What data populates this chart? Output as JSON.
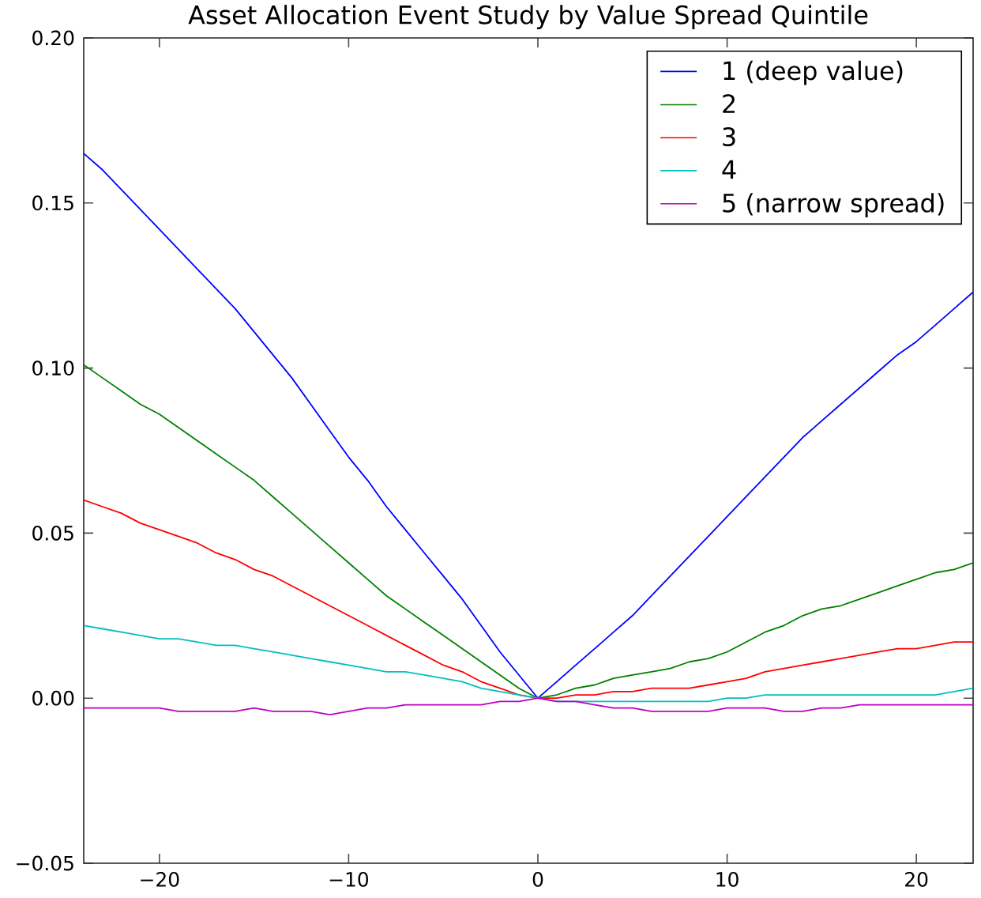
{
  "chart_data": {
    "type": "line",
    "title": "Asset Allocation Event Study by Value Spread Quintile",
    "x": [
      -24,
      -23,
      -22,
      -21,
      -20,
      -19,
      -18,
      -17,
      -16,
      -15,
      -14,
      -13,
      -12,
      -11,
      -10,
      -9,
      -8,
      -7,
      -6,
      -5,
      -4,
      -3,
      -2,
      -1,
      0,
      1,
      2,
      3,
      4,
      5,
      6,
      7,
      8,
      9,
      10,
      11,
      12,
      13,
      14,
      15,
      16,
      17,
      18,
      19,
      20,
      21,
      22,
      23
    ],
    "series": [
      {
        "name": "1 (deep value)",
        "color": "#0000ff",
        "values": [
          0.165,
          0.16,
          0.154,
          0.148,
          0.142,
          0.136,
          0.13,
          0.124,
          0.118,
          0.111,
          0.104,
          0.097,
          0.089,
          0.081,
          0.073,
          0.066,
          0.058,
          0.051,
          0.044,
          0.037,
          0.03,
          0.022,
          0.014,
          0.007,
          0.0,
          0.005,
          0.01,
          0.015,
          0.02,
          0.025,
          0.031,
          0.037,
          0.043,
          0.049,
          0.055,
          0.061,
          0.067,
          0.073,
          0.079,
          0.084,
          0.089,
          0.094,
          0.099,
          0.104,
          0.108,
          0.113,
          0.118,
          0.123
        ]
      },
      {
        "name": "2",
        "color": "#008000",
        "values": [
          0.101,
          0.097,
          0.093,
          0.089,
          0.086,
          0.082,
          0.078,
          0.074,
          0.07,
          0.066,
          0.061,
          0.056,
          0.051,
          0.046,
          0.041,
          0.036,
          0.031,
          0.027,
          0.023,
          0.019,
          0.015,
          0.011,
          0.007,
          0.003,
          0.0,
          0.001,
          0.003,
          0.004,
          0.006,
          0.007,
          0.008,
          0.009,
          0.011,
          0.012,
          0.014,
          0.017,
          0.02,
          0.022,
          0.025,
          0.027,
          0.028,
          0.03,
          0.032,
          0.034,
          0.036,
          0.038,
          0.039,
          0.041
        ]
      },
      {
        "name": "3",
        "color": "#ff0000",
        "values": [
          0.06,
          0.058,
          0.056,
          0.053,
          0.051,
          0.049,
          0.047,
          0.044,
          0.042,
          0.039,
          0.037,
          0.034,
          0.031,
          0.028,
          0.025,
          0.022,
          0.019,
          0.016,
          0.013,
          0.01,
          0.008,
          0.005,
          0.003,
          0.001,
          0.0,
          0.0,
          0.001,
          0.001,
          0.002,
          0.002,
          0.003,
          0.003,
          0.003,
          0.004,
          0.005,
          0.006,
          0.008,
          0.009,
          0.01,
          0.011,
          0.012,
          0.013,
          0.014,
          0.015,
          0.015,
          0.016,
          0.017,
          0.017
        ]
      },
      {
        "name": "4",
        "color": "#00bfbf",
        "values": [
          0.022,
          0.021,
          0.02,
          0.019,
          0.018,
          0.018,
          0.017,
          0.016,
          0.016,
          0.015,
          0.014,
          0.013,
          0.012,
          0.011,
          0.01,
          0.009,
          0.008,
          0.008,
          0.007,
          0.006,
          0.005,
          0.003,
          0.002,
          0.001,
          0.0,
          -0.001,
          -0.001,
          -0.001,
          -0.001,
          -0.001,
          -0.001,
          -0.001,
          -0.001,
          -0.001,
          0.0,
          0.0,
          0.001,
          0.001,
          0.001,
          0.001,
          0.001,
          0.001,
          0.001,
          0.001,
          0.001,
          0.001,
          0.002,
          0.003
        ]
      },
      {
        "name": "5 (narrow spread)",
        "color": "#bf00bf",
        "values": [
          -0.003,
          -0.003,
          -0.003,
          -0.003,
          -0.003,
          -0.004,
          -0.004,
          -0.004,
          -0.004,
          -0.003,
          -0.004,
          -0.004,
          -0.004,
          -0.005,
          -0.004,
          -0.003,
          -0.003,
          -0.002,
          -0.002,
          -0.002,
          -0.002,
          -0.002,
          -0.001,
          -0.001,
          0.0,
          -0.001,
          -0.001,
          -0.002,
          -0.003,
          -0.003,
          -0.004,
          -0.004,
          -0.004,
          -0.004,
          -0.003,
          -0.003,
          -0.003,
          -0.004,
          -0.004,
          -0.003,
          -0.003,
          -0.002,
          -0.002,
          -0.002,
          -0.002,
          -0.002,
          -0.002,
          -0.002
        ]
      }
    ],
    "xlim": [
      -24,
      23
    ],
    "ylim": [
      -0.05,
      0.2
    ],
    "xticks": [
      {
        "value": -20,
        "label": "−20"
      },
      {
        "value": -10,
        "label": "−10"
      },
      0,
      10,
      20
    ],
    "yticks": [
      {
        "value": -0.05,
        "label": "−0.05"
      },
      {
        "value": 0,
        "label": "0.00"
      },
      {
        "value": 0.05,
        "label": "0.05"
      },
      {
        "value": 0.1,
        "label": "0.10"
      },
      {
        "value": 0.15,
        "label": "0.15"
      },
      {
        "value": 0.2,
        "label": "0.20"
      }
    ],
    "legend": "top right"
  }
}
